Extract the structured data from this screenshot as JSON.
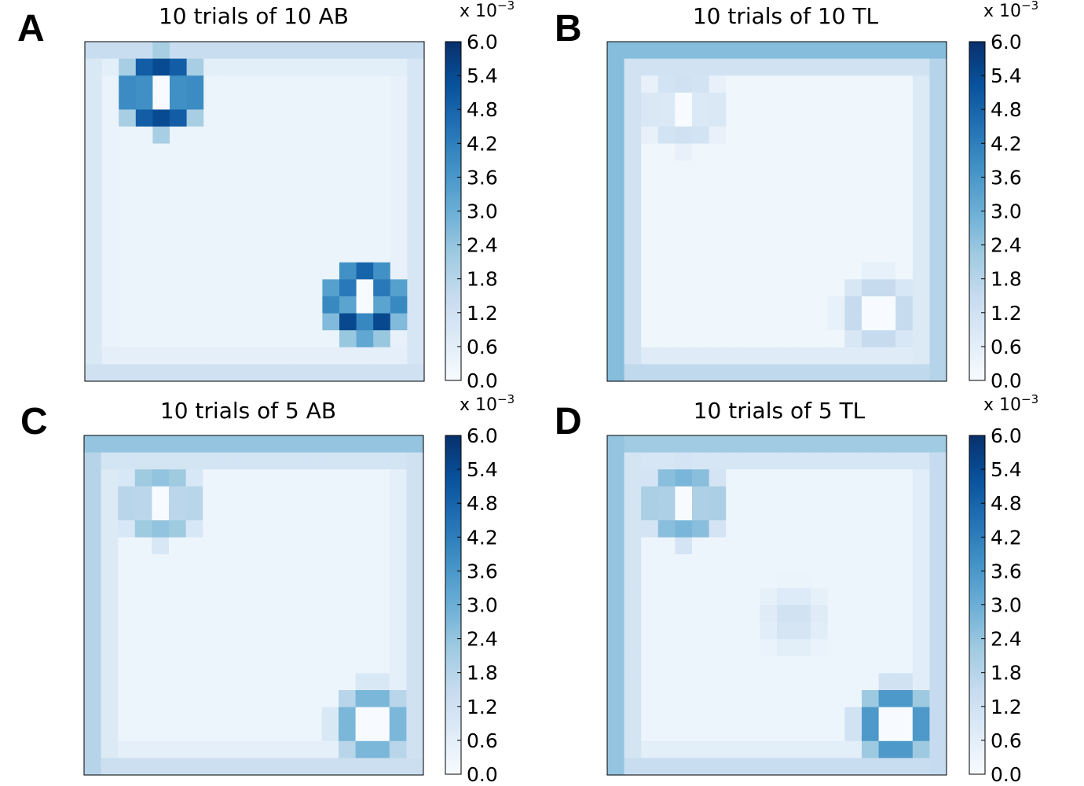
{
  "colors": {
    "cmap_low": "#f7fbff",
    "cmap_mid": "#6baed6",
    "cmap_high": "#08306b",
    "frame": "#000000"
  },
  "chart_data": [
    {
      "type": "heatmap",
      "panel": "A",
      "title": "10 trials of 10 AB",
      "grid": [
        20,
        20
      ],
      "colorbar": {
        "vmin": 0.0,
        "vmax": 6.0,
        "ticks": [
          "0.0",
          "0.6",
          "1.2",
          "1.8",
          "2.4",
          "3.0",
          "3.6",
          "4.2",
          "4.8",
          "5.4",
          "6.0"
        ],
        "multiplier": "x 10",
        "exponent": "−3"
      },
      "base": 0.35,
      "edges": {
        "top": 1.4,
        "bottom": 1.2,
        "left": 0.9,
        "right": 1.0
      },
      "targets": [
        {
          "col": 4,
          "row": 2.5,
          "peak": 5.8,
          "inner": 0.0
        },
        {
          "col": 16,
          "row": 14.8,
          "peak": 5.6,
          "inner": 0.0
        }
      ],
      "blobs": []
    },
    {
      "type": "heatmap",
      "panel": "B",
      "title": "10 trials of 10 TL",
      "grid": [
        20,
        20
      ],
      "colorbar": {
        "vmin": 0.0,
        "vmax": 6.0,
        "ticks": [
          "0.0",
          "0.6",
          "1.2",
          "1.8",
          "2.4",
          "3.0",
          "3.6",
          "4.2",
          "4.8",
          "5.4",
          "6.0"
        ],
        "multiplier": "x 10",
        "exponent": "−3"
      },
      "base": 0.25,
      "edges": {
        "top": 2.6,
        "bottom": 1.6,
        "left": 2.6,
        "right": 1.8
      },
      "targets": [
        {
          "col": 4,
          "row": 3.5,
          "peak": 1.3,
          "inner": 0.0
        },
        {
          "col": 15.5,
          "row": 15.5,
          "peak": 1.5,
          "inner": 0.0
        }
      ],
      "blobs": []
    },
    {
      "type": "heatmap",
      "panel": "C",
      "title": "10 trials of 5 AB",
      "grid": [
        20,
        20
      ],
      "colorbar": {
        "vmin": 0.0,
        "vmax": 6.0,
        "ticks": [
          "0.0",
          "0.6",
          "1.2",
          "1.8",
          "2.4",
          "3.0",
          "3.6",
          "4.2",
          "4.8",
          "5.4",
          "6.0"
        ],
        "multiplier": "x 10",
        "exponent": "−3"
      },
      "base": 0.3,
      "edges": {
        "top": 2.4,
        "bottom": 1.3,
        "left": 1.8,
        "right": 1.2
      },
      "targets": [
        {
          "col": 4,
          "row": 3.5,
          "peak": 2.6,
          "inner": 0.0
        },
        {
          "col": 16.5,
          "row": 16.5,
          "peak": 2.8,
          "inner": 0.0
        }
      ],
      "blobs": []
    },
    {
      "type": "heatmap",
      "panel": "D",
      "title": "10 trials of 5 TL",
      "grid": [
        20,
        20
      ],
      "colorbar": {
        "vmin": 0.0,
        "vmax": 6.0,
        "ticks": [
          "0.0",
          "0.6",
          "1.2",
          "1.8",
          "2.4",
          "3.0",
          "3.6",
          "4.2",
          "4.8",
          "5.4",
          "6.0"
        ],
        "multiplier": "x 10",
        "exponent": "−3"
      },
      "base": 0.3,
      "edges": {
        "top": 2.2,
        "bottom": 1.4,
        "left": 2.4,
        "right": 1.5
      },
      "targets": [
        {
          "col": 4,
          "row": 3.5,
          "peak": 3.0,
          "inner": 0.0
        },
        {
          "col": 16.5,
          "row": 16.5,
          "peak": 3.6,
          "inner": 0.0
        }
      ],
      "blobs": [
        {
          "col": 10.5,
          "row": 10.3,
          "peak": 1.1
        }
      ]
    }
  ]
}
